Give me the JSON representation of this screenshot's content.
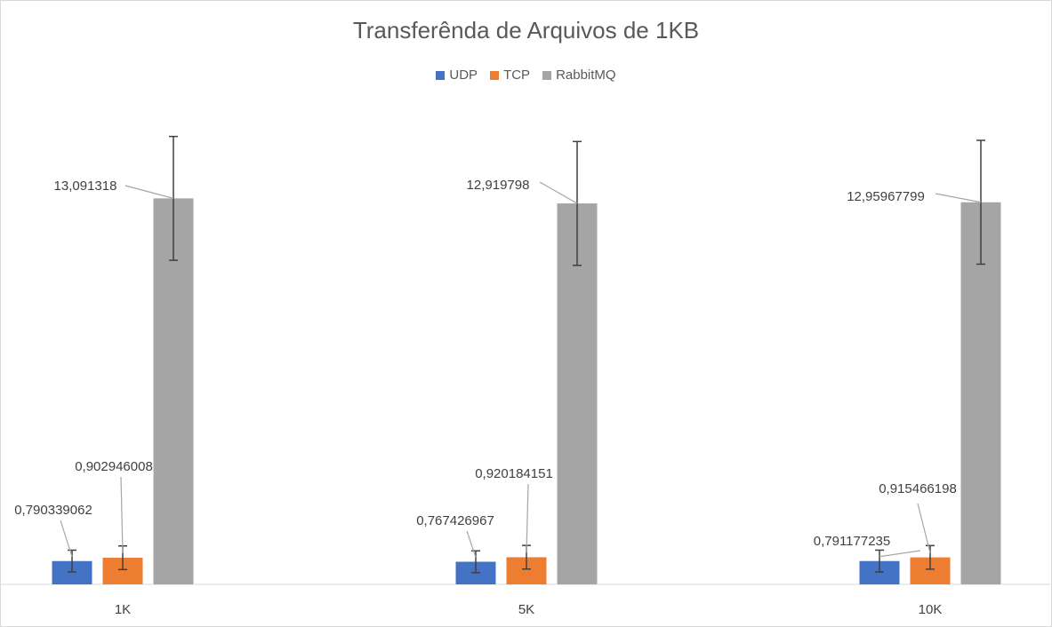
{
  "chart_data": {
    "type": "bar",
    "title": "Transferênda de Arquivos de 1KB",
    "categories": [
      "1K",
      "5K",
      "10K"
    ],
    "series": [
      {
        "name": "UDP",
        "color": "#4472c4",
        "values": [
          0.790339062,
          0.767426967,
          0.791177235
        ],
        "labels": [
          "0,790339062",
          "0,767426967",
          "0,791177235"
        ],
        "error": [
          0.37,
          0.37,
          0.37
        ]
      },
      {
        "name": "TCP",
        "color": "#ed7d31",
        "values": [
          0.902946008,
          0.920184151,
          0.915466198
        ],
        "labels": [
          "0,902946008",
          "0,920184151",
          "0,915466198"
        ],
        "error": [
          0.4,
          0.4,
          0.4
        ]
      },
      {
        "name": "RabbitMQ",
        "color": "#a5a5a5",
        "values": [
          13.091318,
          12.919798,
          12.95967799
        ],
        "labels": [
          "13,091318",
          "12,919798",
          "12,95967799"
        ],
        "error": [
          2.1,
          2.1,
          2.1
        ]
      }
    ],
    "ylim": [
      0,
      18
    ],
    "grid": false,
    "legend_position": "top"
  }
}
